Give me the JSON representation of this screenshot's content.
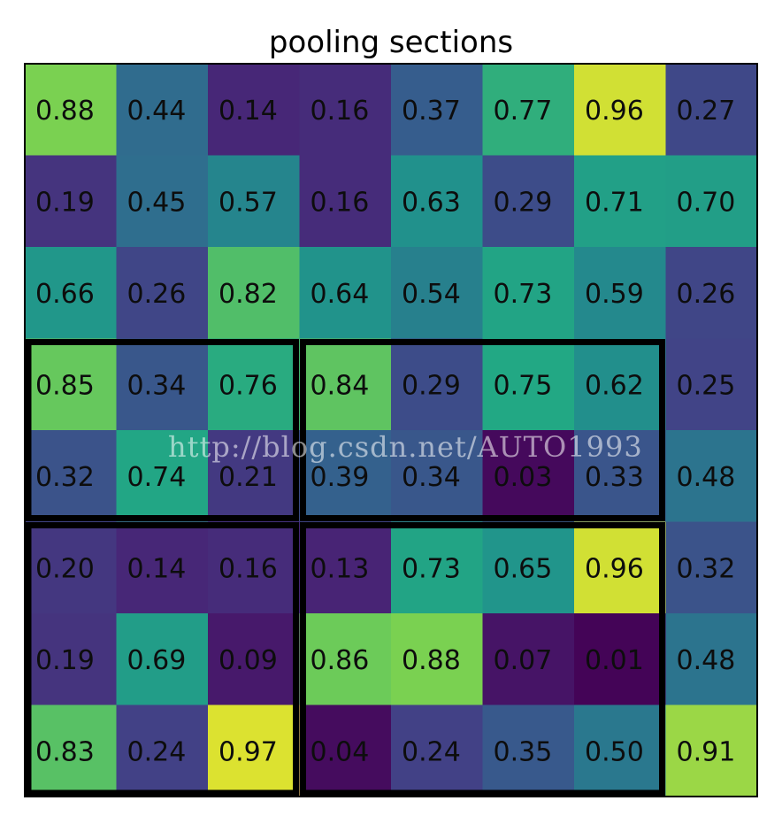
{
  "chart_data": {
    "type": "heatmap",
    "title": "pooling sections",
    "rows": 8,
    "cols": 8,
    "values": [
      [
        0.88,
        0.44,
        0.14,
        0.16,
        0.37,
        0.77,
        0.96,
        0.27
      ],
      [
        0.19,
        0.45,
        0.57,
        0.16,
        0.63,
        0.29,
        0.71,
        0.7
      ],
      [
        0.66,
        0.26,
        0.82,
        0.64,
        0.54,
        0.73,
        0.59,
        0.26
      ],
      [
        0.85,
        0.34,
        0.76,
        0.84,
        0.29,
        0.75,
        0.62,
        0.25
      ],
      [
        0.32,
        0.74,
        0.21,
        0.39,
        0.34,
        0.03,
        0.33,
        0.48
      ],
      [
        0.2,
        0.14,
        0.16,
        0.13,
        0.73,
        0.65,
        0.96,
        0.32
      ],
      [
        0.19,
        0.69,
        0.09,
        0.86,
        0.88,
        0.07,
        0.01,
        0.48
      ],
      [
        0.83,
        0.24,
        0.97,
        0.04,
        0.24,
        0.35,
        0.5,
        0.91
      ]
    ],
    "labels": [
      [
        "0.88",
        "0.44",
        "0.14",
        "0.16",
        "0.37",
        "0.77",
        "0.96",
        "0.27"
      ],
      [
        "0.19",
        "0.45",
        "0.57",
        "0.16",
        "0.63",
        "0.29",
        "0.71",
        "0.70"
      ],
      [
        "0.66",
        "0.26",
        "0.82",
        "0.64",
        "0.54",
        "0.73",
        "0.59",
        "0.26"
      ],
      [
        "0.85",
        "0.34",
        "0.76",
        "0.84",
        "0.29",
        "0.75",
        "0.62",
        "0.25"
      ],
      [
        "0.32",
        "0.74",
        "0.21",
        "0.39",
        "0.34",
        "0.03",
        "0.33",
        "0.48"
      ],
      [
        "0.20",
        "0.14",
        "0.16",
        "0.13",
        "0.73",
        "0.65",
        "0.96",
        "0.32"
      ],
      [
        "0.19",
        "0.69",
        "0.09",
        "0.86",
        "0.88",
        "0.07",
        "0.01",
        "0.48"
      ],
      [
        "0.83",
        "0.24",
        "0.97",
        "0.04",
        "0.24",
        "0.35",
        "0.50",
        "0.91"
      ]
    ],
    "colormap": "viridis",
    "value_range": [
      0,
      1
    ],
    "pooling_sections": [
      {
        "row_start": 3,
        "row_end": 4,
        "col_start": 0,
        "col_end": 2
      },
      {
        "row_start": 3,
        "row_end": 4,
        "col_start": 3,
        "col_end": 6
      },
      {
        "row_start": 5,
        "row_end": 7,
        "col_start": 0,
        "col_end": 2
      },
      {
        "row_start": 5,
        "row_end": 7,
        "col_start": 3,
        "col_end": 6
      }
    ],
    "grid": false,
    "axes_ticks": false
  },
  "watermark": "http://blog.csdn.net/AUTO1993"
}
